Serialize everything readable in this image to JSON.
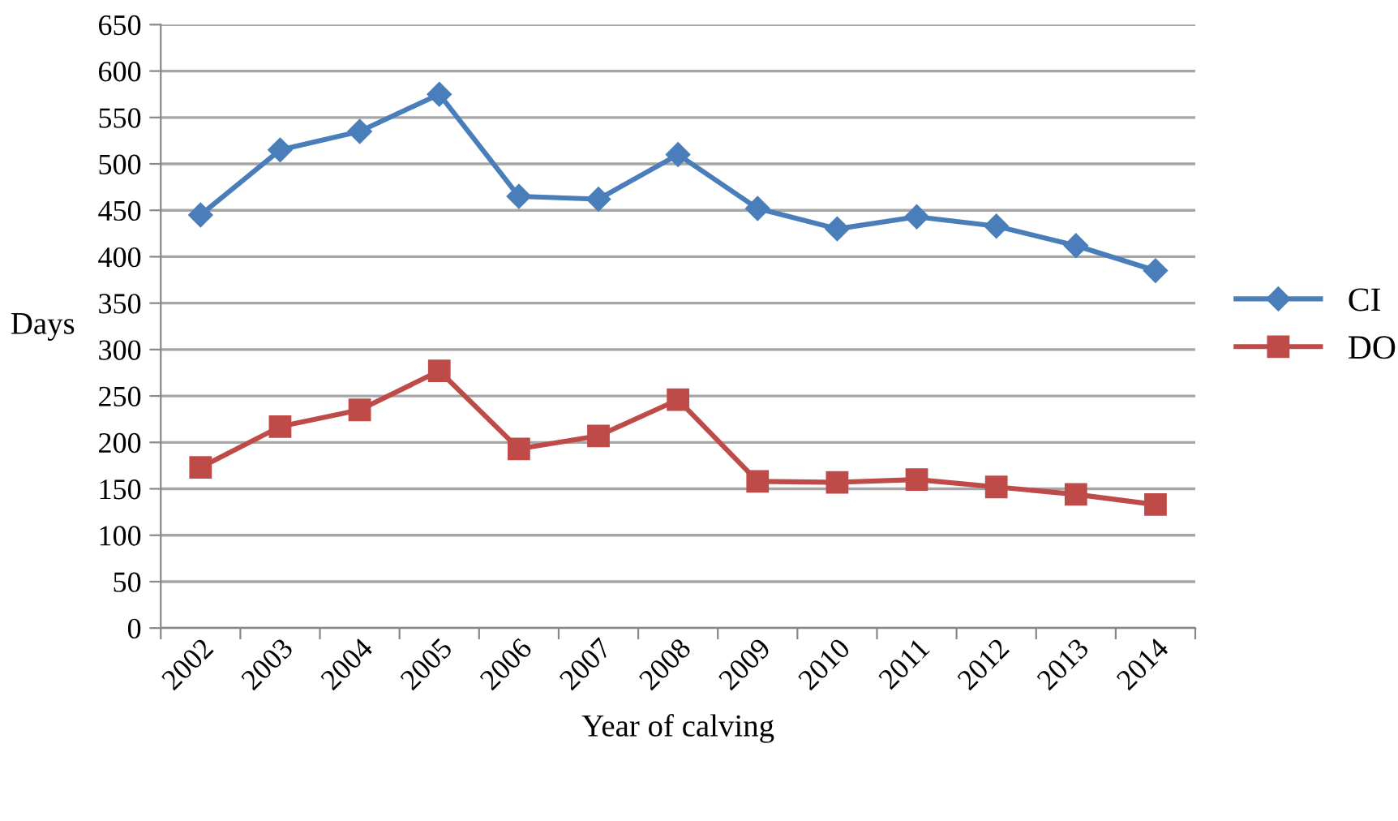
{
  "chart_data": {
    "type": "line",
    "xlabel": "Year of calving",
    "ylabel": "Days",
    "categories": [
      "2002",
      "2003",
      "2004",
      "2005",
      "2006",
      "2007",
      "2008",
      "2009",
      "2010",
      "2011",
      "2012",
      "2013",
      "2014"
    ],
    "series": [
      {
        "name": "CI",
        "color": "#4a7ebb",
        "marker": "diamond",
        "values": [
          445,
          515,
          535,
          575,
          465,
          462,
          510,
          452,
          430,
          443,
          433,
          412,
          385
        ]
      },
      {
        "name": "DO",
        "color": "#be4b48",
        "marker": "square",
        "values": [
          173,
          217,
          235,
          277,
          193,
          207,
          246,
          158,
          157,
          160,
          152,
          144,
          133
        ]
      }
    ],
    "ylim": [
      0,
      650
    ],
    "yticks": [
      0,
      50,
      100,
      150,
      200,
      250,
      300,
      350,
      400,
      450,
      500,
      550,
      600,
      650
    ],
    "grid": "y",
    "legend": "right",
    "line_style": "solid"
  }
}
